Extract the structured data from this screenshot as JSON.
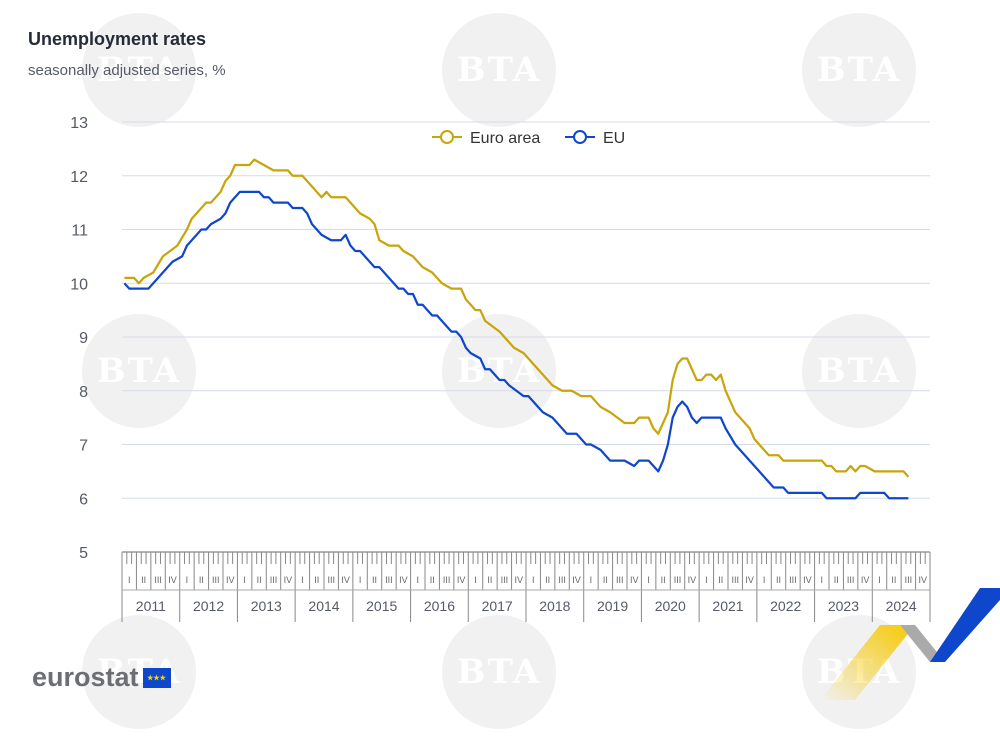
{
  "watermark": "BTA",
  "logo": {
    "text": "eurostat",
    "flag_stars": "★★★"
  },
  "chart_data": {
    "type": "line",
    "title": "Unemployment rates",
    "subtitle": "seasonally adjusted series, %",
    "x_unit": "months since January 2011",
    "ylim": [
      5,
      13
    ],
    "yticks": [
      "5",
      "6",
      "7",
      "8",
      "9",
      "10",
      "11",
      "12",
      "13"
    ],
    "years": [
      "2011",
      "2012",
      "2013",
      "2014",
      "2015",
      "2016",
      "2017",
      "2018",
      "2019",
      "2020",
      "2021",
      "2022",
      "2023",
      "2024"
    ],
    "quarters": [
      "I",
      "II",
      "III",
      "IV"
    ],
    "legend_position": "top-center",
    "grid": true,
    "series": [
      {
        "name": "Euro area",
        "color": "#c9a40a",
        "points": [
          [
            0,
            10.1
          ],
          [
            2,
            10.1
          ],
          [
            3,
            10.0
          ],
          [
            4,
            10.1
          ],
          [
            6,
            10.2
          ],
          [
            8,
            10.5
          ],
          [
            11,
            10.7
          ],
          [
            13,
            11.0
          ],
          [
            14,
            11.2
          ],
          [
            16,
            11.4
          ],
          [
            17,
            11.5
          ],
          [
            18,
            11.5
          ],
          [
            20,
            11.7
          ],
          [
            21,
            11.9
          ],
          [
            22,
            12.0
          ],
          [
            23,
            12.2
          ],
          [
            26,
            12.2
          ],
          [
            27,
            12.3
          ],
          [
            29,
            12.2
          ],
          [
            31,
            12.1
          ],
          [
            34,
            12.1
          ],
          [
            35,
            12.0
          ],
          [
            37,
            12.0
          ],
          [
            39,
            11.8
          ],
          [
            41,
            11.6
          ],
          [
            42,
            11.7
          ],
          [
            43,
            11.6
          ],
          [
            46,
            11.6
          ],
          [
            47,
            11.5
          ],
          [
            49,
            11.3
          ],
          [
            51,
            11.2
          ],
          [
            52,
            11.1
          ],
          [
            53,
            10.8
          ],
          [
            55,
            10.7
          ],
          [
            57,
            10.7
          ],
          [
            58,
            10.6
          ],
          [
            60,
            10.5
          ],
          [
            62,
            10.3
          ],
          [
            64,
            10.2
          ],
          [
            66,
            10.0
          ],
          [
            68,
            9.9
          ],
          [
            70,
            9.9
          ],
          [
            71,
            9.7
          ],
          [
            73,
            9.5
          ],
          [
            74,
            9.5
          ],
          [
            75,
            9.3
          ],
          [
            78,
            9.1
          ],
          [
            80,
            8.9
          ],
          [
            81,
            8.8
          ],
          [
            83,
            8.7
          ],
          [
            86,
            8.4
          ],
          [
            89,
            8.1
          ],
          [
            91,
            8.0
          ],
          [
            93,
            8.0
          ],
          [
            95,
            7.9
          ],
          [
            97,
            7.9
          ],
          [
            99,
            7.7
          ],
          [
            101,
            7.6
          ],
          [
            104,
            7.4
          ],
          [
            106,
            7.4
          ],
          [
            107,
            7.5
          ],
          [
            109,
            7.5
          ],
          [
            110,
            7.3
          ],
          [
            111,
            7.2
          ],
          [
            112,
            7.4
          ],
          [
            113,
            7.6
          ],
          [
            114,
            8.2
          ],
          [
            115,
            8.5
          ],
          [
            116,
            8.6
          ],
          [
            117,
            8.6
          ],
          [
            118,
            8.4
          ],
          [
            119,
            8.2
          ],
          [
            120,
            8.2
          ],
          [
            121,
            8.3
          ],
          [
            122,
            8.3
          ],
          [
            123,
            8.2
          ],
          [
            124,
            8.3
          ],
          [
            125,
            8.0
          ],
          [
            127,
            7.6
          ],
          [
            130,
            7.3
          ],
          [
            131,
            7.1
          ],
          [
            133,
            6.9
          ],
          [
            134,
            6.8
          ],
          [
            136,
            6.8
          ],
          [
            137,
            6.7
          ],
          [
            145,
            6.7
          ],
          [
            146,
            6.6
          ],
          [
            147,
            6.6
          ],
          [
            148,
            6.5
          ],
          [
            150,
            6.5
          ],
          [
            151,
            6.6
          ],
          [
            152,
            6.5
          ],
          [
            153,
            6.6
          ],
          [
            154,
            6.6
          ],
          [
            156,
            6.5
          ],
          [
            162,
            6.5
          ],
          [
            163,
            6.4
          ]
        ]
      },
      {
        "name": "EU",
        "color": "#0e47cb",
        "points": [
          [
            0,
            10.0
          ],
          [
            1,
            9.9
          ],
          [
            5,
            9.9
          ],
          [
            6,
            10.0
          ],
          [
            8,
            10.2
          ],
          [
            10,
            10.4
          ],
          [
            12,
            10.5
          ],
          [
            13,
            10.7
          ],
          [
            15,
            10.9
          ],
          [
            16,
            11.0
          ],
          [
            17,
            11.0
          ],
          [
            18,
            11.1
          ],
          [
            20,
            11.2
          ],
          [
            21,
            11.3
          ],
          [
            22,
            11.5
          ],
          [
            23,
            11.6
          ],
          [
            24,
            11.7
          ],
          [
            28,
            11.7
          ],
          [
            29,
            11.6
          ],
          [
            30,
            11.6
          ],
          [
            31,
            11.5
          ],
          [
            34,
            11.5
          ],
          [
            35,
            11.4
          ],
          [
            37,
            11.4
          ],
          [
            38,
            11.3
          ],
          [
            39,
            11.1
          ],
          [
            40,
            11.0
          ],
          [
            41,
            10.9
          ],
          [
            43,
            10.8
          ],
          [
            45,
            10.8
          ],
          [
            46,
            10.9
          ],
          [
            47,
            10.7
          ],
          [
            48,
            10.6
          ],
          [
            49,
            10.6
          ],
          [
            51,
            10.4
          ],
          [
            52,
            10.3
          ],
          [
            53,
            10.3
          ],
          [
            55,
            10.1
          ],
          [
            57,
            9.9
          ],
          [
            58,
            9.9
          ],
          [
            59,
            9.8
          ],
          [
            60,
            9.8
          ],
          [
            61,
            9.6
          ],
          [
            62,
            9.6
          ],
          [
            64,
            9.4
          ],
          [
            65,
            9.4
          ],
          [
            67,
            9.2
          ],
          [
            68,
            9.1
          ],
          [
            69,
            9.1
          ],
          [
            70,
            9.0
          ],
          [
            71,
            8.8
          ],
          [
            72,
            8.7
          ],
          [
            74,
            8.6
          ],
          [
            75,
            8.4
          ],
          [
            76,
            8.4
          ],
          [
            77,
            8.3
          ],
          [
            78,
            8.2
          ],
          [
            79,
            8.2
          ],
          [
            80,
            8.1
          ],
          [
            83,
            7.9
          ],
          [
            84,
            7.9
          ],
          [
            86,
            7.7
          ],
          [
            87,
            7.6
          ],
          [
            89,
            7.5
          ],
          [
            90,
            7.4
          ],
          [
            92,
            7.2
          ],
          [
            94,
            7.2
          ],
          [
            95,
            7.1
          ],
          [
            96,
            7.0
          ],
          [
            97,
            7.0
          ],
          [
            99,
            6.9
          ],
          [
            101,
            6.7
          ],
          [
            104,
            6.7
          ],
          [
            106,
            6.6
          ],
          [
            107,
            6.7
          ],
          [
            109,
            6.7
          ],
          [
            110,
            6.6
          ],
          [
            111,
            6.5
          ],
          [
            112,
            6.7
          ],
          [
            113,
            7.0
          ],
          [
            114,
            7.5
          ],
          [
            115,
            7.7
          ],
          [
            116,
            7.8
          ],
          [
            117,
            7.7
          ],
          [
            118,
            7.5
          ],
          [
            119,
            7.4
          ],
          [
            120,
            7.5
          ],
          [
            124,
            7.5
          ],
          [
            125,
            7.3
          ],
          [
            127,
            7.0
          ],
          [
            128,
            6.9
          ],
          [
            130,
            6.7
          ],
          [
            132,
            6.5
          ],
          [
            134,
            6.3
          ],
          [
            135,
            6.2
          ],
          [
            137,
            6.2
          ],
          [
            138,
            6.1
          ],
          [
            145,
            6.1
          ],
          [
            146,
            6.0
          ],
          [
            152,
            6.0
          ],
          [
            153,
            6.1
          ],
          [
            158,
            6.1
          ],
          [
            159,
            6.0
          ],
          [
            163,
            6.0
          ]
        ]
      }
    ]
  }
}
